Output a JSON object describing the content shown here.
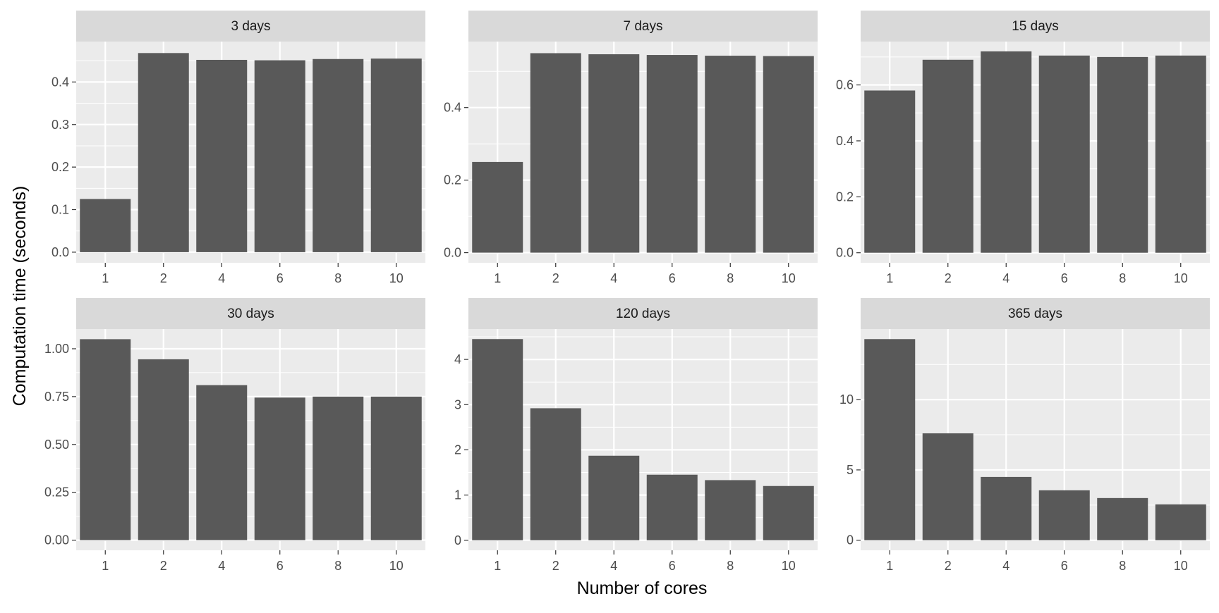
{
  "chart_data": {
    "type": "bar",
    "xlabel": "Number of cores",
    "ylabel": "Computation time (seconds)",
    "categories": [
      "1",
      "2",
      "4",
      "6",
      "8",
      "10"
    ],
    "colors": {
      "bar": "#595959",
      "panel": "#ebebeb",
      "strip": "#d9d9d9",
      "grid": "#ffffff"
    },
    "panels": [
      {
        "title": "3 days",
        "values": [
          0.125,
          0.468,
          0.452,
          0.451,
          0.454,
          0.455
        ],
        "ylim": [
          -0.025,
          0.495
        ],
        "yticks": [
          0.0,
          0.1,
          0.2,
          0.3,
          0.4
        ],
        "yticklabels": [
          "0.0",
          "0.1",
          "0.2",
          "0.3",
          "0.4"
        ]
      },
      {
        "title": "7 days",
        "values": [
          0.25,
          0.55,
          0.547,
          0.545,
          0.543,
          0.542
        ],
        "ylim": [
          -0.028,
          0.582
        ],
        "yticks": [
          0.0,
          0.2,
          0.4
        ],
        "yticklabels": [
          "0.0",
          "0.2",
          "0.4"
        ]
      },
      {
        "title": "15 days",
        "values": [
          0.58,
          0.69,
          0.72,
          0.705,
          0.7,
          0.705
        ],
        "ylim": [
          -0.036,
          0.755
        ],
        "yticks": [
          0.0,
          0.2,
          0.4,
          0.6
        ],
        "yticklabels": [
          "0.0",
          "0.2",
          "0.4",
          "0.6"
        ]
      },
      {
        "title": "30 days",
        "values": [
          1.05,
          0.945,
          0.81,
          0.745,
          0.75,
          0.75
        ],
        "ylim": [
          -0.053,
          1.103
        ],
        "yticks": [
          0.0,
          0.25,
          0.5,
          0.75,
          1.0
        ],
        "yticklabels": [
          "0.00",
          "0.25",
          "0.50",
          "0.75",
          "1.00"
        ]
      },
      {
        "title": "120 days",
        "values": [
          4.45,
          2.92,
          1.87,
          1.45,
          1.33,
          1.2
        ],
        "ylim": [
          -0.222,
          4.672
        ],
        "yticks": [
          0,
          1,
          2,
          3,
          4
        ],
        "yticklabels": [
          "0",
          "1",
          "2",
          "3",
          "4"
        ]
      },
      {
        "title": "365 days",
        "values": [
          14.3,
          7.6,
          4.5,
          3.55,
          3.0,
          2.55
        ],
        "ylim": [
          -0.715,
          15.015
        ],
        "yticks": [
          0,
          5,
          10
        ],
        "yticklabels": [
          "0",
          "5",
          "10"
        ]
      }
    ]
  }
}
